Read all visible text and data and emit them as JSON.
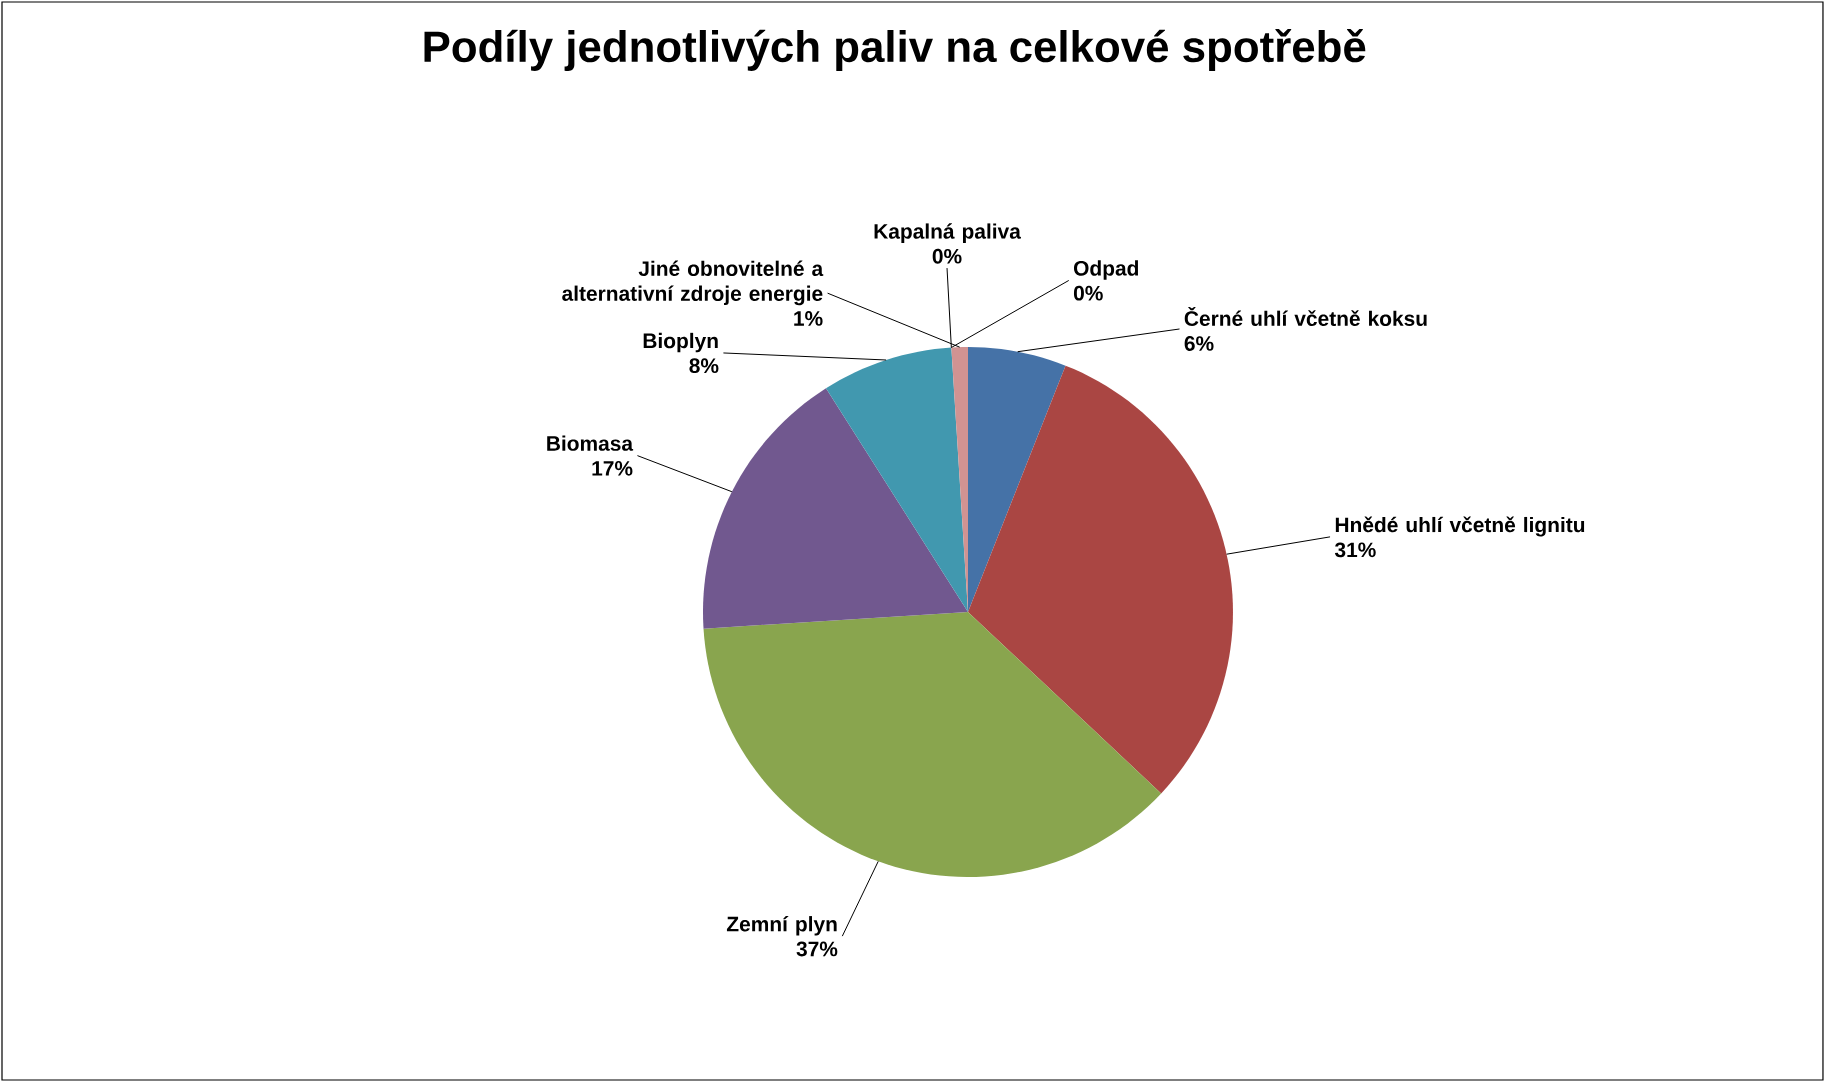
{
  "chart_data": {
    "type": "pie",
    "title": "Podíly jednotlivých paliv na celkové spotřebě",
    "categories": [
      "Černé uhlí včetně koksu",
      "Hnědé uhlí včetně lignitu",
      "Zemní plyn",
      "Biomasa",
      "Bioplyn",
      "Odpad",
      "Kapalná paliva",
      "Jiné obnovitelné a alternativní zdroje energie"
    ],
    "values": [
      6,
      31,
      37,
      17,
      8,
      0,
      0,
      1
    ],
    "value_labels": [
      "6%",
      "31%",
      "37%",
      "17%",
      "8%",
      "0%",
      "0%",
      "1%"
    ],
    "colors": [
      "#4572a7",
      "#aa4643",
      "#89a54e",
      "#71588f",
      "#4198af",
      "#db843d",
      "#93a9cf",
      "#d19392"
    ]
  }
}
